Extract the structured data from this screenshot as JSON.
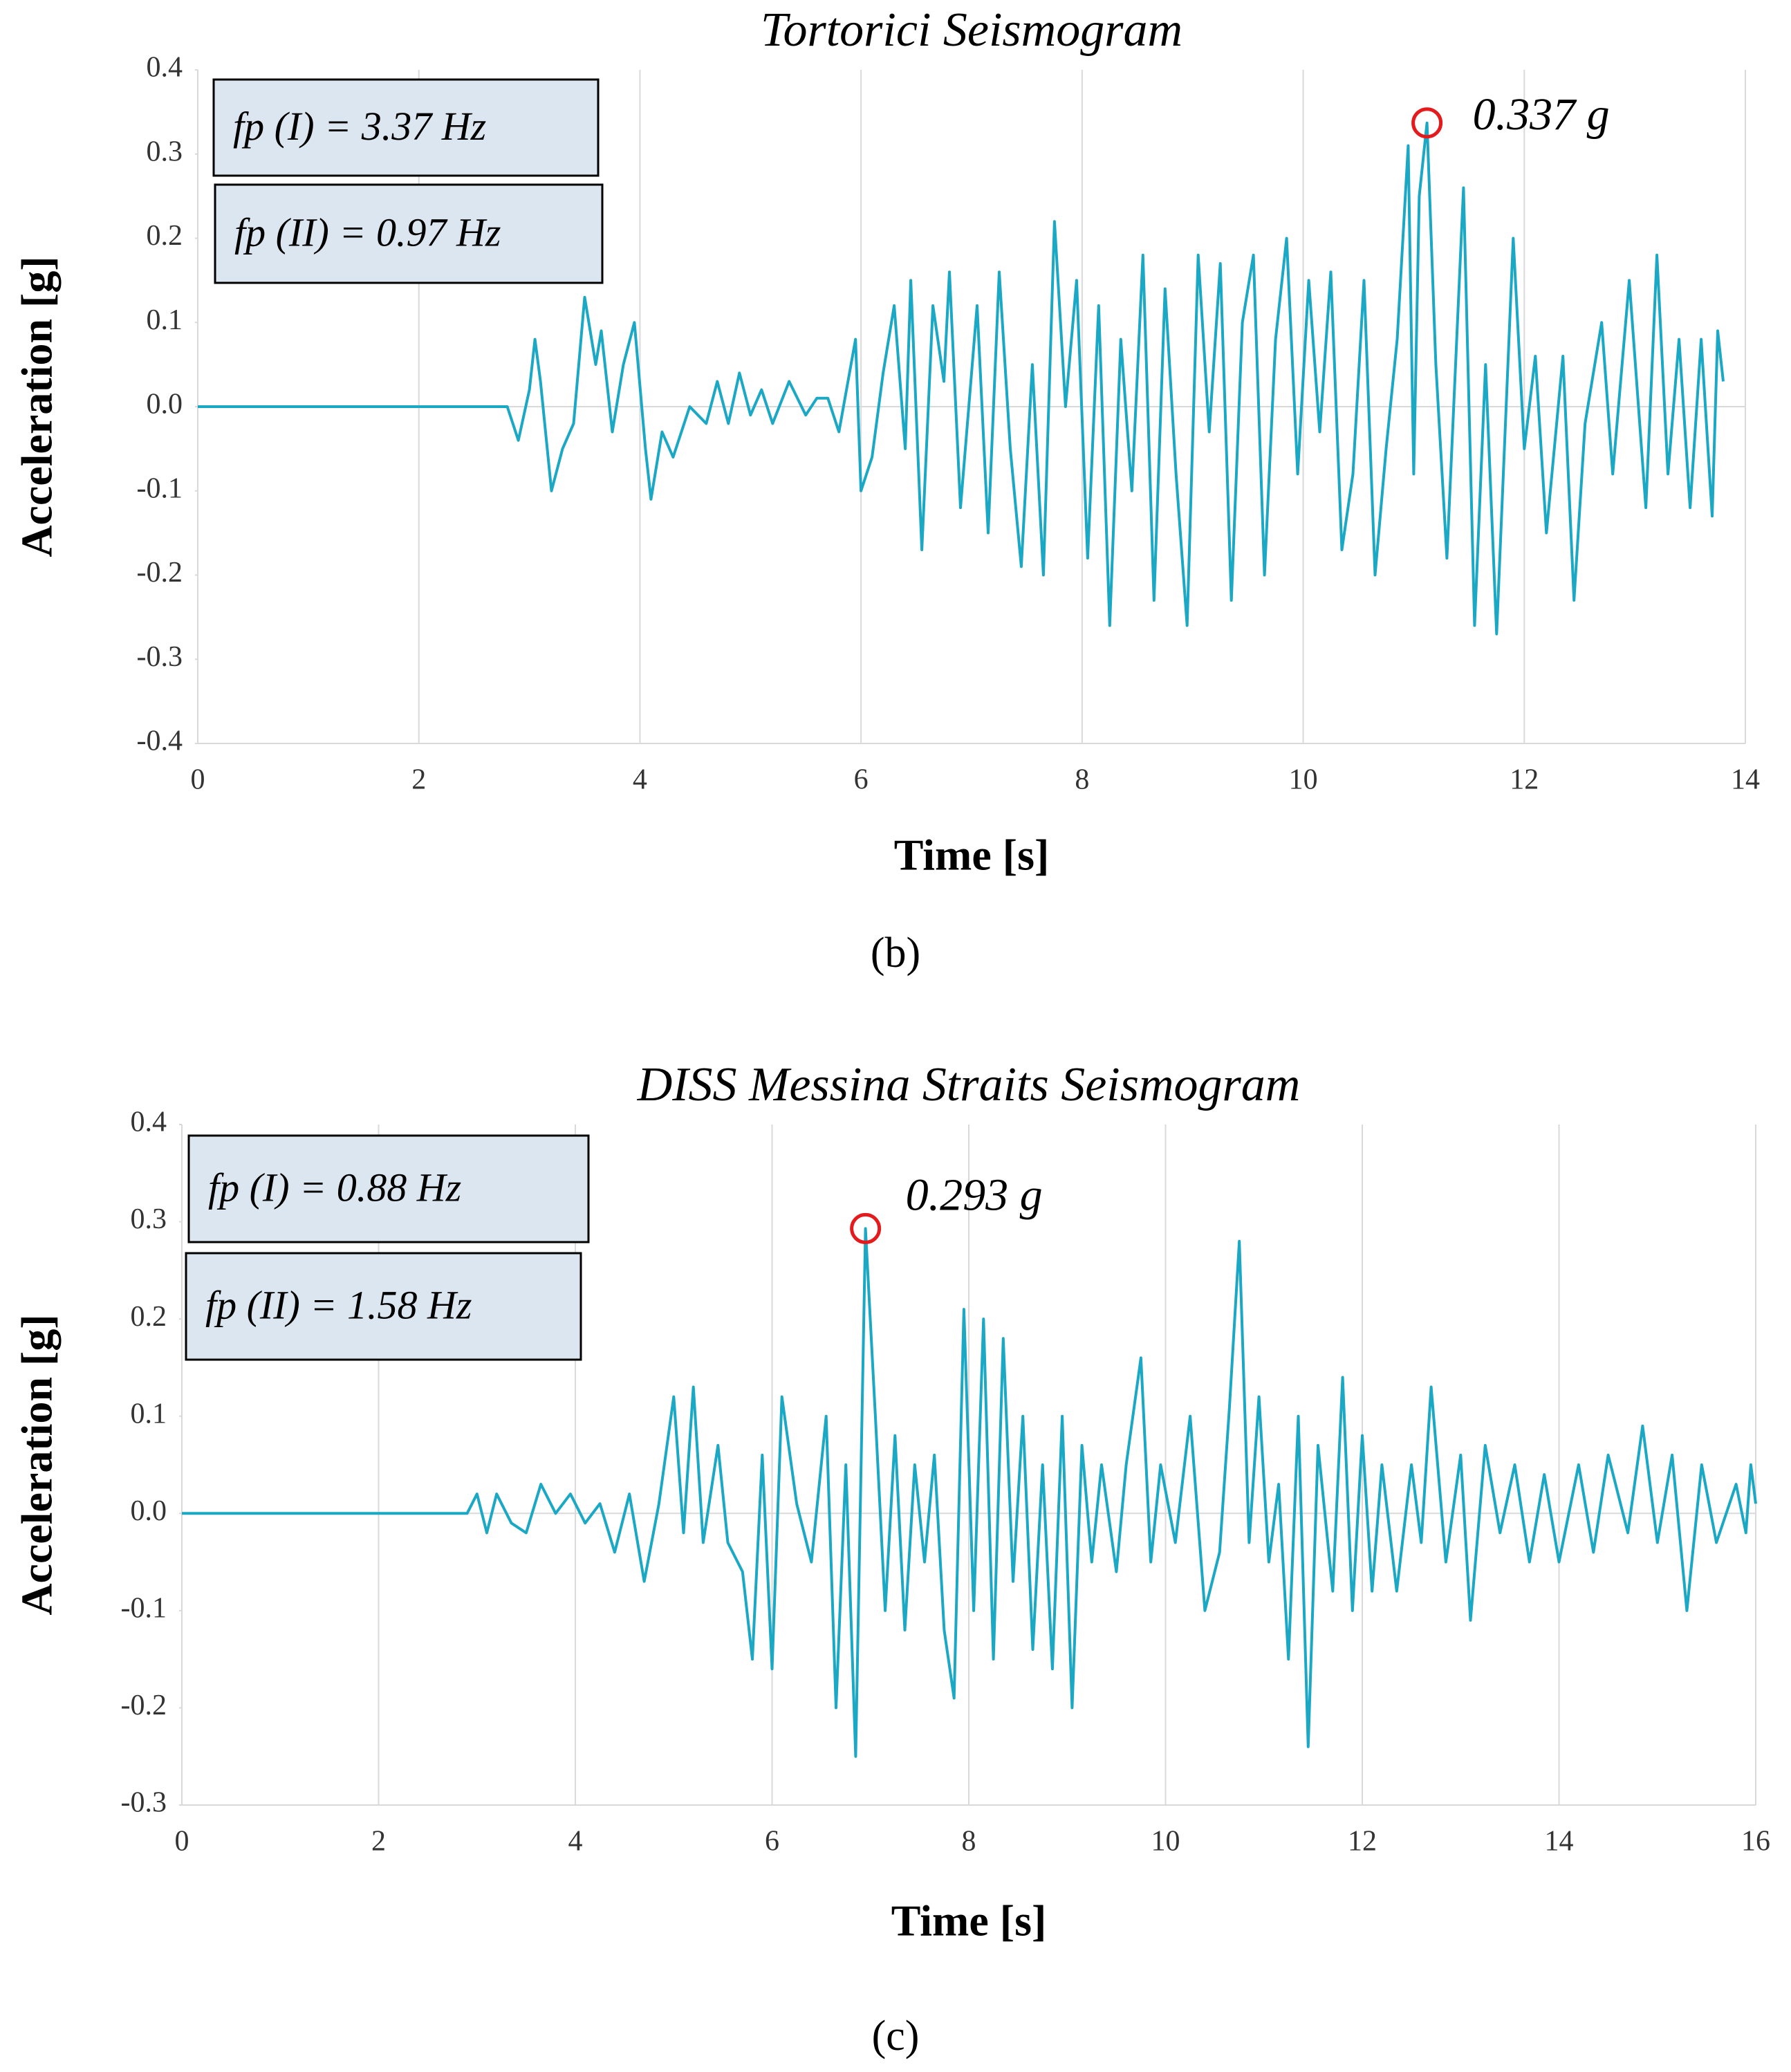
{
  "chart_data": [
    {
      "type": "line",
      "title": "Tortorici Seismogram",
      "x_label": "Time [s]",
      "y_label": "Acceleration [g]",
      "panel_label": "(b)",
      "color": "#1ba8c4",
      "grid": "x",
      "xlim": [
        0,
        14
      ],
      "xticks": [
        0,
        2,
        4,
        6,
        8,
        10,
        12,
        14
      ],
      "ylim": [
        -0.4,
        0.4
      ],
      "yticks": [
        -0.4,
        -0.3,
        -0.2,
        -0.1,
        {
          "value": 0,
          "label": "0.0"
        },
        0.1,
        0.2,
        0.3,
        0.4
      ],
      "boxes": [
        "fp (I) = 3.37 Hz",
        "fp (II) = 0.97 Hz"
      ],
      "peak": {
        "x": 11.12,
        "y": 0.337,
        "label": "0.337 g"
      },
      "x": [
        0,
        2.8,
        2.9,
        3.0,
        3.05,
        3.1,
        3.2,
        3.3,
        3.4,
        3.5,
        3.6,
        3.65,
        3.75,
        3.85,
        3.95,
        4.05,
        4.1,
        4.2,
        4.3,
        4.45,
        4.6,
        4.7,
        4.8,
        4.9,
        5.0,
        5.1,
        5.2,
        5.35,
        5.5,
        5.6,
        5.7,
        5.8,
        5.95,
        6.0,
        6.1,
        6.2,
        6.3,
        6.4,
        6.45,
        6.55,
        6.65,
        6.75,
        6.8,
        6.9,
        7.05,
        7.15,
        7.25,
        7.35,
        7.45,
        7.55,
        7.65,
        7.75,
        7.85,
        7.95,
        8.05,
        8.15,
        8.25,
        8.35,
        8.45,
        8.55,
        8.65,
        8.75,
        8.85,
        8.95,
        9.05,
        9.15,
        9.25,
        9.35,
        9.45,
        9.55,
        9.65,
        9.75,
        9.85,
        9.95,
        10.05,
        10.15,
        10.25,
        10.35,
        10.45,
        10.55,
        10.65,
        10.75,
        10.85,
        10.95,
        11.0,
        11.05,
        11.12,
        11.2,
        11.3,
        11.45,
        11.55,
        11.65,
        11.75,
        11.9,
        12.0,
        12.1,
        12.2,
        12.35,
        12.45,
        12.55,
        12.7,
        12.8,
        12.95,
        13.1,
        13.2,
        13.3,
        13.4,
        13.5,
        13.6,
        13.7,
        13.75,
        13.8
      ],
      "values": [
        0,
        0,
        -0.04,
        0.02,
        0.08,
        0.03,
        -0.1,
        -0.05,
        -0.02,
        0.13,
        0.05,
        0.09,
        -0.03,
        0.05,
        0.1,
        -0.05,
        -0.11,
        -0.03,
        -0.06,
        0.0,
        -0.02,
        0.03,
        -0.02,
        0.04,
        -0.01,
        0.02,
        -0.02,
        0.03,
        -0.01,
        0.01,
        0.01,
        -0.03,
        0.08,
        -0.1,
        -0.06,
        0.04,
        0.12,
        -0.05,
        0.15,
        -0.17,
        0.12,
        0.03,
        0.16,
        -0.12,
        0.12,
        -0.15,
        0.16,
        -0.05,
        -0.19,
        0.05,
        -0.2,
        0.22,
        0.0,
        0.15,
        -0.18,
        0.12,
        -0.26,
        0.08,
        -0.1,
        0.18,
        -0.23,
        0.14,
        -0.08,
        -0.26,
        0.18,
        -0.03,
        0.17,
        -0.23,
        0.1,
        0.18,
        -0.2,
        0.08,
        0.2,
        -0.08,
        0.15,
        -0.03,
        0.16,
        -0.17,
        -0.08,
        0.15,
        -0.2,
        -0.05,
        0.08,
        0.31,
        -0.08,
        0.25,
        0.337,
        0.05,
        -0.18,
        0.26,
        -0.26,
        0.05,
        -0.27,
        0.2,
        -0.05,
        0.06,
        -0.15,
        0.06,
        -0.23,
        -0.02,
        0.1,
        -0.08,
        0.15,
        -0.12,
        0.18,
        -0.08,
        0.08,
        -0.12,
        0.08,
        -0.13,
        0.09,
        0.03
      ]
    },
    {
      "type": "line",
      "title": "DISS Messina Straits Seismogram",
      "x_label": "Time [s]",
      "y_label": "Acceleration [g]",
      "panel_label": "(c)",
      "color": "#1ba8c4",
      "grid": "x",
      "xlim": [
        0,
        16
      ],
      "xticks": [
        0,
        2,
        4,
        6,
        8,
        10,
        12,
        14,
        16
      ],
      "ylim": [
        -0.3,
        0.4
      ],
      "yticks": [
        -0.3,
        -0.2,
        -0.1,
        {
          "value": 0,
          "label": "0.0"
        },
        0.1,
        0.2,
        0.3,
        0.4
      ],
      "boxes": [
        "fp (I) = 0.88 Hz",
        "fp (II) = 1.58 Hz"
      ],
      "peak": {
        "x": 6.95,
        "y": 0.293,
        "label": "0.293 g"
      },
      "x": [
        0,
        2.9,
        3.0,
        3.1,
        3.2,
        3.35,
        3.5,
        3.65,
        3.8,
        3.95,
        4.1,
        4.25,
        4.4,
        4.55,
        4.7,
        4.85,
        5.0,
        5.1,
        5.2,
        5.3,
        5.45,
        5.55,
        5.7,
        5.8,
        5.9,
        6.0,
        6.1,
        6.25,
        6.4,
        6.55,
        6.65,
        6.75,
        6.85,
        6.95,
        7.05,
        7.15,
        7.25,
        7.35,
        7.45,
        7.55,
        7.65,
        7.75,
        7.85,
        7.95,
        8.05,
        8.15,
        8.25,
        8.35,
        8.45,
        8.55,
        8.65,
        8.75,
        8.85,
        8.95,
        9.05,
        9.15,
        9.25,
        9.35,
        9.5,
        9.6,
        9.75,
        9.85,
        9.95,
        10.1,
        10.25,
        10.4,
        10.55,
        10.65,
        10.75,
        10.85,
        10.95,
        11.05,
        11.15,
        11.25,
        11.35,
        11.45,
        11.55,
        11.7,
        11.8,
        11.9,
        12.0,
        12.1,
        12.2,
        12.35,
        12.5,
        12.6,
        12.7,
        12.85,
        13.0,
        13.1,
        13.25,
        13.4,
        13.55,
        13.7,
        13.85,
        14.0,
        14.2,
        14.35,
        14.5,
        14.7,
        14.85,
        15.0,
        15.15,
        15.3,
        15.45,
        15.6,
        15.8,
        15.9,
        15.95,
        16.0
      ],
      "values": [
        0,
        0,
        0.02,
        -0.02,
        0.02,
        -0.01,
        -0.02,
        0.03,
        0.0,
        0.02,
        -0.01,
        0.01,
        -0.04,
        0.02,
        -0.07,
        0.01,
        0.12,
        -0.02,
        0.13,
        -0.03,
        0.07,
        -0.03,
        -0.06,
        -0.15,
        0.06,
        -0.16,
        0.12,
        0.01,
        -0.05,
        0.1,
        -0.2,
        0.05,
        -0.25,
        0.293,
        0.1,
        -0.1,
        0.08,
        -0.12,
        0.05,
        -0.05,
        0.06,
        -0.12,
        -0.19,
        0.21,
        -0.1,
        0.2,
        -0.15,
        0.18,
        -0.07,
        0.1,
        -0.14,
        0.05,
        -0.16,
        0.1,
        -0.2,
        0.07,
        -0.05,
        0.05,
        -0.06,
        0.05,
        0.16,
        -0.05,
        0.05,
        -0.03,
        0.1,
        -0.1,
        -0.04,
        0.11,
        0.28,
        -0.03,
        0.12,
        -0.05,
        0.03,
        -0.15,
        0.1,
        -0.24,
        0.07,
        -0.08,
        0.14,
        -0.1,
        0.08,
        -0.08,
        0.05,
        -0.08,
        0.05,
        -0.03,
        0.13,
        -0.05,
        0.06,
        -0.11,
        0.07,
        -0.02,
        0.05,
        -0.05,
        0.04,
        -0.05,
        0.05,
        -0.04,
        0.06,
        -0.02,
        0.09,
        -0.03,
        0.06,
        -0.1,
        0.05,
        -0.03,
        0.03,
        -0.02,
        0.05,
        0.01
      ]
    }
  ]
}
